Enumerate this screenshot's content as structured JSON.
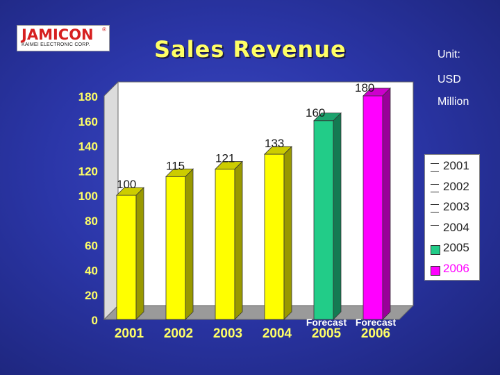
{
  "logo": {
    "name": "JAMICON",
    "subtitle": "KAIMEI ELECTRONIC CORP.",
    "mark": "®"
  },
  "title": "Sales Revenue",
  "unit_lines": [
    "Unit:",
    "USD",
    "Million"
  ],
  "colors": {
    "yellow": "#ffff00",
    "teal": "#22cc88",
    "magenta": "#ff00ff",
    "ylabel_color": "#ffff66",
    "background": "#2b36a8"
  },
  "chart_data": {
    "type": "bar",
    "categories": [
      "2001",
      "2002",
      "2003",
      "2004",
      "2005",
      "2006"
    ],
    "values": [
      100,
      115,
      121,
      133,
      160,
      180
    ],
    "data_labels": [
      "100",
      "115",
      "121",
      "133",
      "160",
      "180"
    ],
    "bar_colors": [
      "#ffff00",
      "#ffff00",
      "#ffff00",
      "#ffff00",
      "#22cc88",
      "#ff00ff"
    ],
    "annotations": [
      "",
      "",
      "",
      "",
      "Forecast",
      "Forecast"
    ],
    "ylim": [
      0,
      180
    ],
    "yticks": [
      "0",
      "20",
      "40",
      "60",
      "80",
      "100",
      "120",
      "140",
      "160",
      "180"
    ],
    "legend": [
      "2001",
      "2002",
      "2003",
      "2004",
      "2005",
      "2006"
    ],
    "legend_position": "right",
    "three_d": true
  }
}
